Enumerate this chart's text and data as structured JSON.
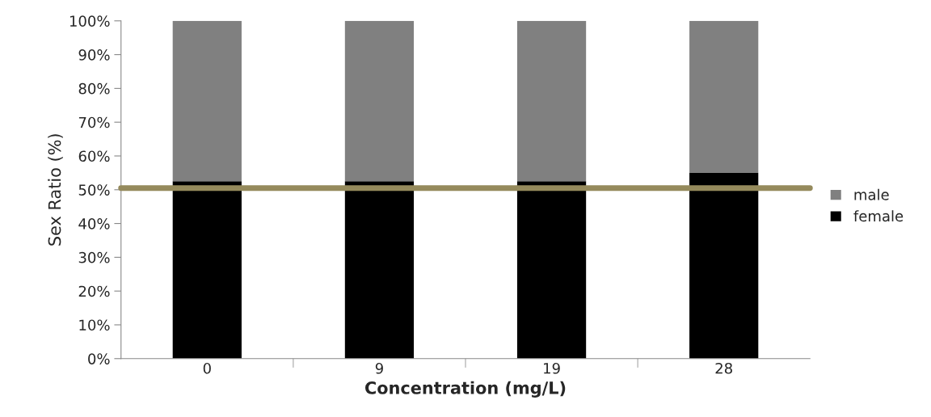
{
  "chart_data": {
    "type": "bar",
    "stacked": true,
    "xlabel": "Concentration (mg/L)",
    "ylabel": "Sex Ratio (%)",
    "categories": [
      "0",
      "9",
      "19",
      "28"
    ],
    "series": [
      {
        "name": "female",
        "color": "#000000",
        "values": [
          52.5,
          52.5,
          52.5,
          55
        ]
      },
      {
        "name": "male",
        "color": "#808080",
        "values": [
          47.5,
          47.5,
          47.5,
          45
        ]
      }
    ],
    "ylim": [
      0,
      100
    ],
    "yticks": [
      {
        "value": 0,
        "label": "0%"
      },
      {
        "value": 10,
        "label": "10%"
      },
      {
        "value": 20,
        "label": "20%"
      },
      {
        "value": 30,
        "label": "30%"
      },
      {
        "value": 40,
        "label": "40%"
      },
      {
        "value": 50,
        "label": "50%"
      },
      {
        "value": 60,
        "label": "60%"
      },
      {
        "value": 70,
        "label": "70%"
      },
      {
        "value": 80,
        "label": "80%"
      },
      {
        "value": 90,
        "label": "90%"
      },
      {
        "value": 100,
        "label": "100%"
      }
    ],
    "ref_lines": [
      {
        "axis": "y",
        "value": 50.5,
        "color": "#958a5c"
      }
    ],
    "grid": false,
    "legend": "right"
  }
}
